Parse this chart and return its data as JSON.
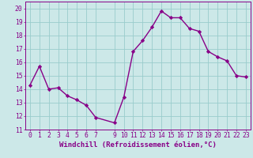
{
  "x": [
    0,
    1,
    2,
    3,
    4,
    5,
    6,
    7,
    9,
    10,
    11,
    12,
    13,
    14,
    15,
    16,
    17,
    18,
    19,
    20,
    21,
    22,
    23
  ],
  "y": [
    14.3,
    15.7,
    14.0,
    14.1,
    13.5,
    13.2,
    12.8,
    11.9,
    11.5,
    13.4,
    16.8,
    17.6,
    18.6,
    19.8,
    19.3,
    19.3,
    18.5,
    18.3,
    16.8,
    16.4,
    16.1,
    15.0,
    14.9
  ],
  "line_color": "#880088",
  "marker": "D",
  "marker_size": 2.2,
  "bg_color": "#cce8e8",
  "grid_color": "#99cccc",
  "xlabel": "Windchill (Refroidissement éolien,°C)",
  "ylabel": "",
  "xlim": [
    -0.5,
    23.5
  ],
  "ylim": [
    11,
    20.5
  ],
  "yticks": [
    11,
    12,
    13,
    14,
    15,
    16,
    17,
    18,
    19,
    20
  ],
  "xticks": [
    0,
    1,
    2,
    3,
    4,
    5,
    6,
    7,
    9,
    10,
    11,
    12,
    13,
    14,
    15,
    16,
    17,
    18,
    19,
    20,
    21,
    22,
    23
  ],
  "tick_color": "#880088",
  "label_color": "#880088",
  "xlabel_fontsize": 6.5,
  "tick_fontsize": 5.8,
  "line_width": 1.0
}
